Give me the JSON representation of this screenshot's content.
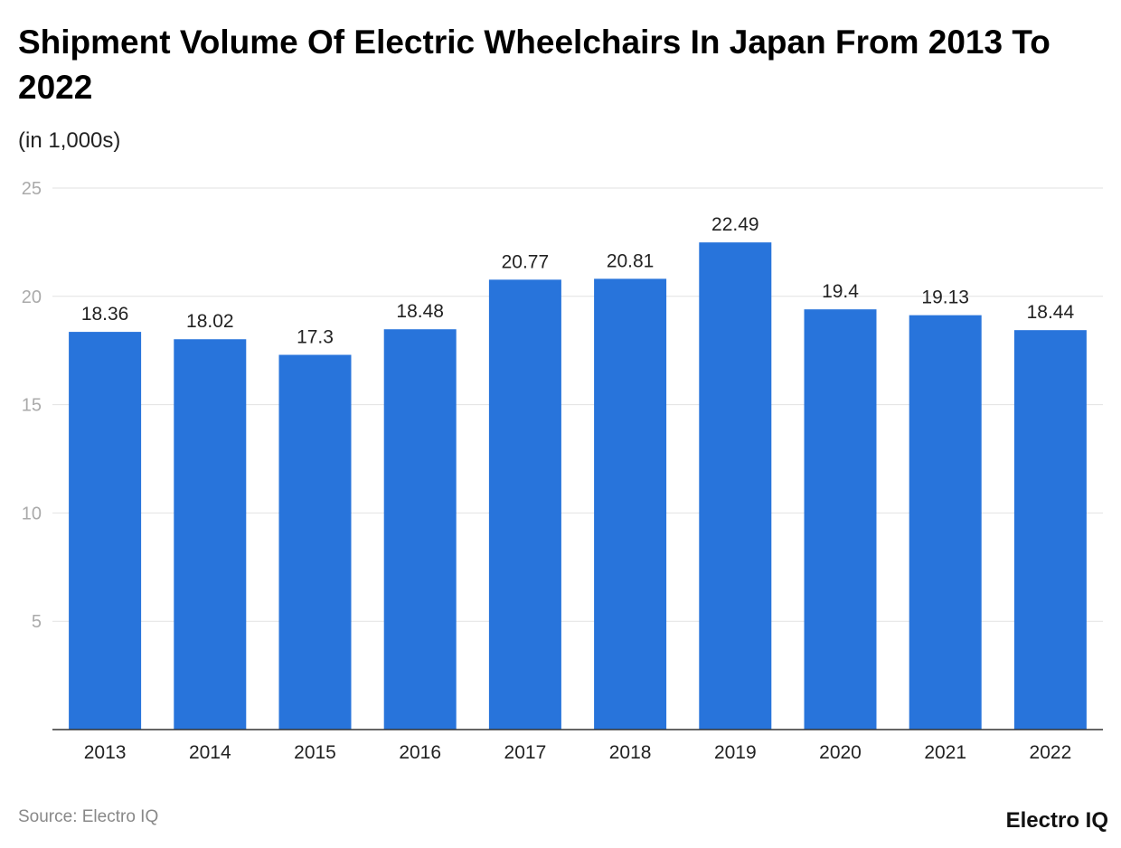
{
  "title": "Shipment Volume Of Electric Wheelchairs In Japan From 2013 To 2022",
  "subtitle": "(in 1,000s)",
  "source": "Source: Electro IQ",
  "logo": "Electro IQ",
  "chart_data": {
    "type": "bar",
    "categories": [
      "2013",
      "2014",
      "2015",
      "2016",
      "2017",
      "2018",
      "2019",
      "2020",
      "2021",
      "2022"
    ],
    "values": [
      18.36,
      18.02,
      17.3,
      18.48,
      20.77,
      20.81,
      22.49,
      19.4,
      19.13,
      18.44
    ],
    "data_labels": [
      "18.36",
      "18.02",
      "17.3",
      "18.48",
      "20.77",
      "20.81",
      "22.49",
      "19.4",
      "19.13",
      "18.44"
    ],
    "yticks": [
      "5",
      "10",
      "15",
      "20",
      "25"
    ],
    "ylim": [
      0,
      25
    ],
    "grid": true,
    "bar_color": "#2874DB"
  }
}
